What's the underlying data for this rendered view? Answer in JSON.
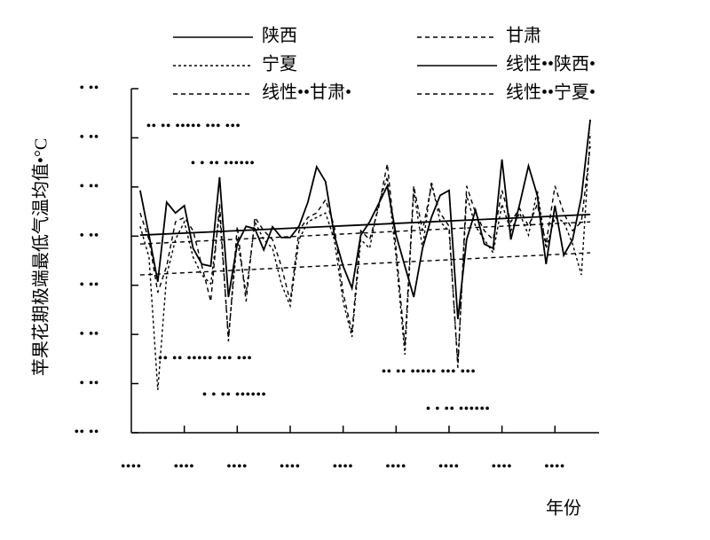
{
  "chart_data": {
    "type": "line",
    "y_label": "苹果花期极端最低气温均值•°C",
    "x_label": "年份",
    "x": [
      1,
      2,
      3,
      4,
      5,
      6,
      7,
      8,
      9,
      10,
      11,
      12,
      13,
      14,
      15,
      16,
      17,
      18,
      19,
      20,
      21,
      22,
      23,
      24,
      25,
      26,
      27,
      28,
      29,
      30,
      31,
      32,
      33,
      34,
      35,
      36,
      37,
      38,
      39,
      40,
      41,
      42,
      43,
      44,
      45,
      46,
      47,
      48,
      49,
      50,
      51,
      52
    ],
    "xlim": [
      0,
      53
    ],
    "xticks": [
      {
        "value": 0,
        "label": "••••"
      },
      {
        "value": 6,
        "label": "••••"
      },
      {
        "value": 12,
        "label": "••••"
      },
      {
        "value": 18,
        "label": "••••"
      },
      {
        "value": 24,
        "label": "••••"
      },
      {
        "value": 30,
        "label": "••••"
      },
      {
        "value": 36,
        "label": "••••"
      },
      {
        "value": 42,
        "label": "••••"
      },
      {
        "value": 48,
        "label": "••••"
      }
    ],
    "ylim": [
      0,
      7
    ],
    "yticks": [
      {
        "value": 0,
        "label": "•• ••"
      },
      {
        "value": 1,
        "label": "• ••"
      },
      {
        "value": 2,
        "label": "• ••"
      },
      {
        "value": 3,
        "label": "• ••"
      },
      {
        "value": 4,
        "label": "• ••"
      },
      {
        "value": 5,
        "label": "• ••"
      },
      {
        "value": 6,
        "label": "• ••"
      },
      {
        "value": 7,
        "label": "• ••"
      }
    ],
    "series": [
      {
        "name": "陕西",
        "color": "#000000",
        "style": "solid",
        "values": [
          4.93,
          4.02,
          3.07,
          4.69,
          4.47,
          4.62,
          3.75,
          3.43,
          3.39,
          5.2,
          2.76,
          3.84,
          4.2,
          4.15,
          3.72,
          4.19,
          3.97,
          3.97,
          4.2,
          4.69,
          5.41,
          5.11,
          4.02,
          3.39,
          2.94,
          4.02,
          4.29,
          4.65,
          5.02,
          4.02,
          3.39,
          2.76,
          3.75,
          4.38,
          4.83,
          4.93,
          2.31,
          3.93,
          4.53,
          3.84,
          3.75,
          5.56,
          3.93,
          4.65,
          5.43,
          4.83,
          3.43,
          4.62,
          3.61,
          3.93,
          4.8,
          6.37
        ]
      },
      {
        "name": "甘肃",
        "color": "#000000",
        "style": "dashed",
        "values": [
          4.47,
          3.93,
          2.85,
          3.39,
          4.29,
          4.38,
          4.11,
          3.39,
          2.67,
          4.65,
          1.86,
          4.2,
          2.67,
          4.38,
          4.11,
          3.93,
          3.39,
          2.67,
          4.11,
          4.38,
          4.47,
          4.74,
          4.2,
          2.85,
          2.04,
          4.11,
          3.93,
          4.56,
          5.47,
          3.75,
          1.77,
          5.02,
          4.11,
          5.02,
          4.47,
          4.2,
          1.32,
          5.02,
          4.47,
          4.11,
          3.93,
          4.93,
          4.29,
          4.56,
          4.2,
          4.65,
          3.84,
          5.02,
          4.47,
          4.11,
          4.29,
          5.83
        ]
      },
      {
        "name": "宁夏",
        "color": "#000000",
        "style": "dotted",
        "values": [
          4.2,
          3.57,
          0.87,
          3.21,
          3.93,
          4.29,
          3.57,
          3.21,
          3.03,
          4.47,
          1.95,
          3.93,
          2.85,
          4.29,
          3.93,
          3.75,
          3.03,
          2.58,
          3.93,
          4.29,
          4.38,
          4.47,
          3.93,
          2.67,
          1.95,
          3.93,
          3.75,
          4.65,
          5.2,
          3.57,
          1.59,
          4.93,
          3.75,
          5.11,
          4.29,
          4.11,
          1.41,
          4.83,
          4.2,
          3.93,
          3.66,
          4.65,
          4.11,
          4.47,
          4.02,
          4.93,
          3.75,
          4.38,
          4.29,
          3.84,
          3.21,
          6.1
        ]
      },
      {
        "name": "线性••陕西•",
        "color": "#000000",
        "style": "solid",
        "x": [
          1,
          52
        ],
        "values": [
          4.02,
          4.44
        ]
      },
      {
        "name": "线性••甘肃•",
        "color": "#000000",
        "style": "dashed",
        "x": [
          1,
          52
        ],
        "values": [
          3.84,
          4.29
        ]
      },
      {
        "name": "线性••宁夏•",
        "color": "#000000",
        "style": "dashed",
        "x": [
          1,
          52
        ],
        "values": [
          3.21,
          3.66
        ]
      }
    ],
    "annotations": [
      "•• •• ••••• ••• •••",
      "• • •• ••••••",
      "•• •• ••••• ••• •••",
      "• • •• ••••••",
      "•• •• ••••• ••• •••",
      "• • •• ••••••"
    ]
  }
}
